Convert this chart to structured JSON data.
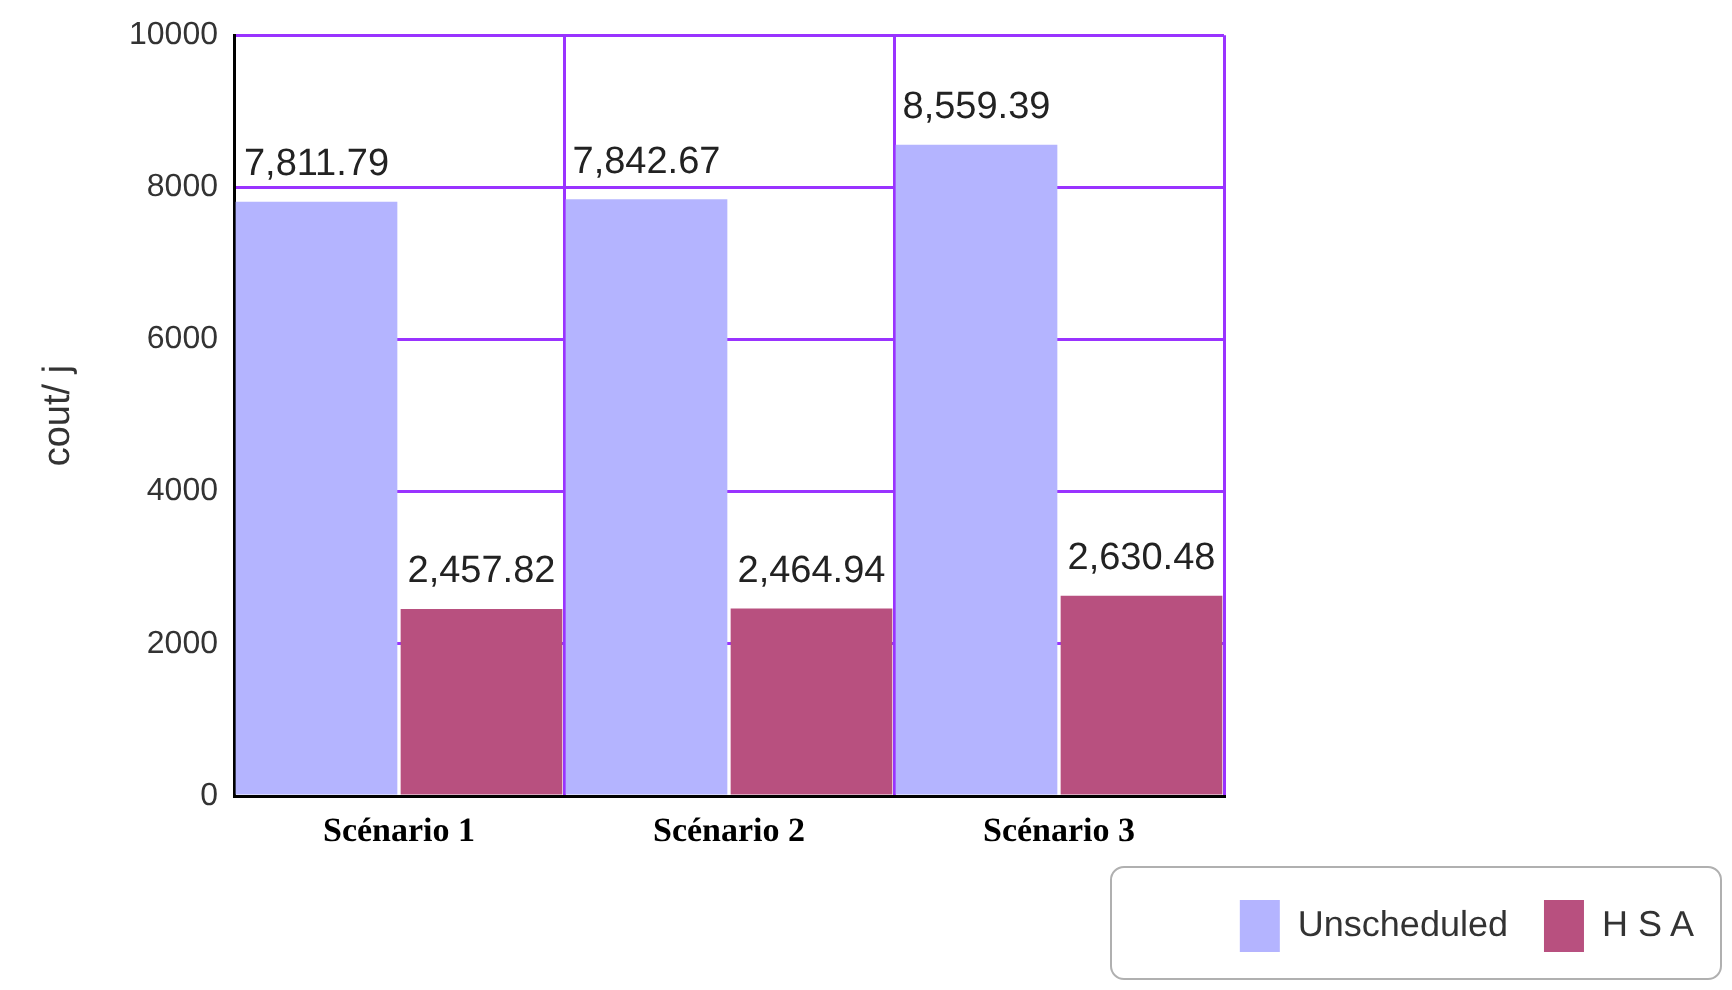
{
  "chart_data": {
    "type": "bar",
    "ylabel": "cout/ j",
    "categories": [
      "Scénario 1",
      "Scénario 2",
      "Scénario 3"
    ],
    "series": [
      {
        "name": "Unscheduled",
        "color": "#b4b4ff",
        "values": [
          7811.79,
          7842.67,
          8559.39
        ],
        "value_labels": [
          "7,811.79",
          "7,842.67",
          "8,559.39"
        ]
      },
      {
        "name": "H S A",
        "color": "#b8507f",
        "values": [
          2457.82,
          2464.94,
          2630.48
        ],
        "value_labels": [
          "2,457.82",
          "2,464.94",
          "2,630.48"
        ]
      }
    ],
    "ylim": [
      0,
      10000
    ],
    "yticks": [
      0,
      2000,
      4000,
      6000,
      8000,
      10000
    ],
    "grid": true,
    "legend": "bottom right"
  }
}
